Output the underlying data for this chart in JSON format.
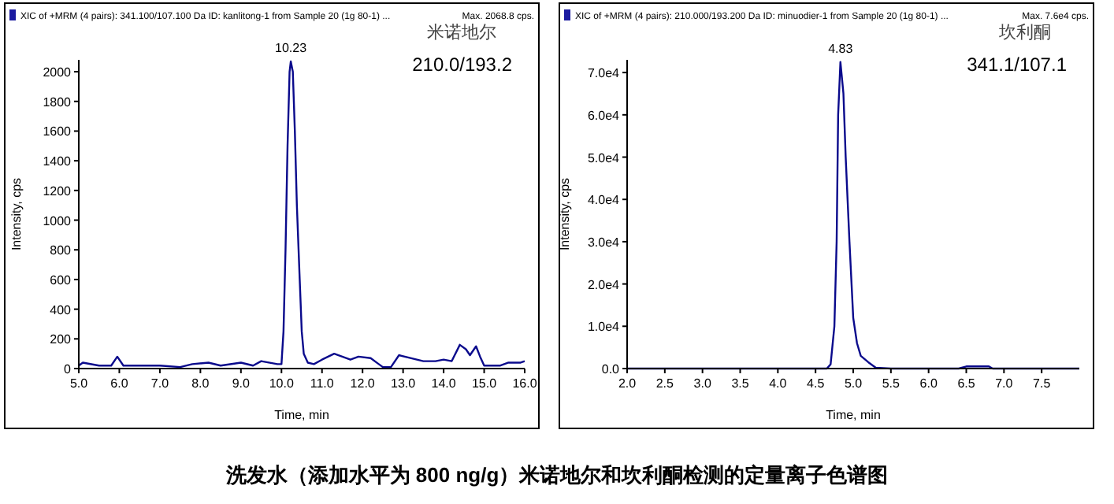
{
  "chart_data": [
    {
      "type": "line",
      "xlabel": "Time, min",
      "ylabel": "Intensity, cps",
      "xlim": [
        5,
        16
      ],
      "ylim": [
        0,
        2080
      ],
      "xticks": [
        {
          "value": 5,
          "label": "5.0"
        },
        {
          "value": 6,
          "label": "6.0"
        },
        {
          "value": 7,
          "label": "7.0"
        },
        {
          "value": 8,
          "label": "8.0"
        },
        {
          "value": 9,
          "label": "9.0"
        },
        {
          "value": 10,
          "label": "10.0"
        },
        {
          "value": 11,
          "label": "11.0"
        },
        {
          "value": 12,
          "label": "12.0"
        },
        {
          "value": 13,
          "label": "13.0"
        },
        {
          "value": 14,
          "label": "14.0"
        },
        {
          "value": 15,
          "label": "15.0"
        },
        {
          "value": 16,
          "label": "16.0"
        }
      ],
      "yticks": [
        0,
        200,
        400,
        600,
        800,
        1000,
        1200,
        1400,
        1600,
        1800,
        2000
      ],
      "grid": false,
      "marker": "none",
      "line_style": "solid",
      "series": [
        {
          "color": "#0a0a8c",
          "x": [
            5.0,
            5.1,
            5.5,
            5.8,
            5.95,
            6.1,
            6.5,
            7.0,
            7.5,
            7.8,
            8.2,
            8.5,
            9.0,
            9.3,
            9.5,
            9.9,
            10.0,
            10.05,
            10.1,
            10.15,
            10.2,
            10.23,
            10.28,
            10.33,
            10.38,
            10.45,
            10.5,
            10.55,
            10.65,
            10.8,
            11.0,
            11.3,
            11.5,
            11.7,
            11.9,
            12.2,
            12.4,
            12.5,
            12.7,
            12.9,
            13.2,
            13.5,
            13.8,
            14.0,
            14.2,
            14.4,
            14.55,
            14.65,
            14.8,
            14.9,
            15.0,
            15.4,
            15.6,
            15.9,
            16.0
          ],
          "values": [
            20,
            40,
            20,
            20,
            80,
            20,
            20,
            20,
            10,
            30,
            40,
            20,
            40,
            20,
            50,
            30,
            30,
            250,
            800,
            1500,
            2000,
            2070,
            2000,
            1600,
            1100,
            600,
            250,
            100,
            40,
            30,
            60,
            100,
            80,
            60,
            80,
            70,
            30,
            10,
            10,
            90,
            70,
            50,
            50,
            60,
            50,
            160,
            130,
            90,
            150,
            80,
            20,
            20,
            40,
            40,
            50
          ]
        }
      ],
      "annotations": [
        "XIC of +MRM (4 pairs): 341.100/107.100 Da ID: kanlitong-1 from Sample 20 (1g 80-1) ...",
        "Max. 2068.8 cps.",
        "米诺地尔",
        "210.0/193.2",
        {
          "text": "10.23",
          "x": 10.23,
          "y": 2070
        },
        "洗发水（添加水平为 800 ng/g）米诺地尔和坎利酮检测的定量离子色谱图"
      ]
    },
    {
      "type": "line",
      "xlabel": "Time, min",
      "ylabel": "Intensity, cps",
      "xlim": [
        2,
        8
      ],
      "ylim": [
        0,
        73000
      ],
      "xticks": [
        {
          "value": 2,
          "label": "2.0"
        },
        {
          "value": 2.5,
          "label": "2.5"
        },
        {
          "value": 3,
          "label": "3.0"
        },
        {
          "value": 3.5,
          "label": "3.5"
        },
        {
          "value": 4,
          "label": "4.0"
        },
        {
          "value": 4.5,
          "label": "4.5"
        },
        {
          "value": 5,
          "label": "5.0"
        },
        {
          "value": 5.5,
          "label": "5.5"
        },
        {
          "value": 6,
          "label": "6.0"
        },
        {
          "value": 6.5,
          "label": "6.5"
        },
        {
          "value": 7,
          "label": "7.0"
        },
        {
          "value": 7.5,
          "label": "7.5"
        }
      ],
      "yticks": [
        {
          "value": 0,
          "label": "0.0"
        },
        {
          "value": 10000,
          "label": "1.0e4"
        },
        {
          "value": 20000,
          "label": "2.0e4"
        },
        {
          "value": 30000,
          "label": "3.0e4"
        },
        {
          "value": 40000,
          "label": "4.0e4"
        },
        {
          "value": 50000,
          "label": "5.0e4"
        },
        {
          "value": 60000,
          "label": "6.0e4"
        },
        {
          "value": 70000,
          "label": "7.0e4"
        }
      ],
      "grid": false,
      "marker": "none",
      "line_style": "solid",
      "series": [
        {
          "color": "#0a0a8c",
          "x": [
            2.0,
            4.65,
            4.7,
            4.75,
            4.78,
            4.8,
            4.83,
            4.87,
            4.9,
            4.95,
            5.0,
            5.05,
            5.1,
            5.2,
            5.3,
            5.5,
            6.4,
            6.5,
            6.8,
            6.85,
            8.0
          ],
          "values": [
            0,
            0,
            1000,
            10000,
            30000,
            60000,
            72500,
            65000,
            50000,
            30000,
            12000,
            6000,
            3000,
            1500,
            200,
            0,
            0,
            500,
            500,
            0,
            0
          ]
        }
      ],
      "annotations": [
        "XIC of +MRM (4 pairs): 210.000/193.200 Da ID: minuodier-1 from Sample 20 (1g 80-1) ...",
        "Max. 7.6e4 cps.",
        "坎利酮",
        "341.1/107.1",
        {
          "text": "4.83",
          "x": 4.83,
          "y": 72500
        }
      ]
    }
  ]
}
